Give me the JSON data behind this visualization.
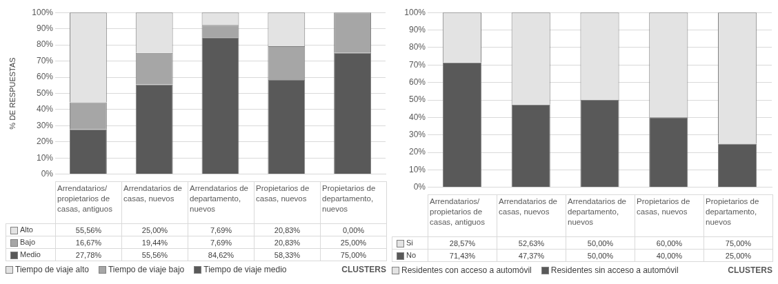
{
  "chart_data": [
    {
      "type": "bar",
      "stacked": true,
      "ylabel": "% DE RESPUESTAS",
      "xlabel": "CLUSTERS",
      "categories": [
        "Arrendatarios/ propietarios de casas, antiguos",
        "Arrendatarios de casas, nuevos",
        "Arrendatarios de departamento, nuevos",
        "Propietarios de casas, nuevos",
        "Propietarios de departamento, nuevos"
      ],
      "series": [
        {
          "name": "Tiempo de viaje medio",
          "color": "#595959",
          "values": [
            27.78,
            55.56,
            84.62,
            58.33,
            75.0
          ],
          "value_labels": [
            "27,78%",
            "55,56%",
            "84,62%",
            "58,33%",
            "75,00%"
          ]
        },
        {
          "name": "Tiempo de viaje bajo",
          "color": "#a6a6a6",
          "values": [
            16.67,
            19.44,
            7.69,
            20.83,
            25.0
          ],
          "value_labels": [
            "16,67%",
            "19,44%",
            "7,69%",
            "20,83%",
            "25,00%"
          ]
        },
        {
          "name": "Tiempo de viaje alto",
          "color": "#e3e3e3",
          "values": [
            55.56,
            25.0,
            7.69,
            20.83,
            0.0
          ],
          "value_labels": [
            "55,56%",
            "25,00%",
            "7,69%",
            "20,83%",
            "0,00%"
          ]
        }
      ],
      "annotations": [
        "Medio",
        "Bajo",
        "Alto"
      ],
      "ylim": [
        0,
        100
      ],
      "yticks": [
        {
          "value": 0,
          "label": "0%"
        },
        {
          "value": 10,
          "label": "10%"
        },
        {
          "value": 20,
          "label": "20%"
        },
        {
          "value": 30,
          "label": "30%"
        },
        {
          "value": 40,
          "label": "40%"
        },
        {
          "value": 50,
          "label": "50%"
        },
        {
          "value": 60,
          "label": "60%"
        },
        {
          "value": 70,
          "label": "70%"
        },
        {
          "value": 80,
          "label": "80%"
        },
        {
          "value": 90,
          "label": "90%"
        },
        {
          "value": 100,
          "label": "100%"
        }
      ],
      "grid": "y",
      "legend": "bottom"
    },
    {
      "type": "bar",
      "stacked": true,
      "xlabel": "CLUSTERS",
      "categories": [
        "Arrendatarios/ propietarios de casas, antiguos",
        "Arrendatarios de casas, nuevos",
        "Arrendatarios de departamento, nuevos",
        "Propietarios de casas, nuevos",
        "Propietarios de departamento, nuevos"
      ],
      "series": [
        {
          "name": "Residentes sin acceso a automóvil",
          "color": "#595959",
          "values": [
            71.43,
            47.37,
            50.0,
            40.0,
            25.0
          ],
          "value_labels": [
            "71,43%",
            "47,37%",
            "50,00%",
            "40,00%",
            "25,00%"
          ]
        },
        {
          "name": "Residentes con acceso a automóvil",
          "color": "#e3e3e3",
          "values": [
            28.57,
            52.63,
            50.0,
            60.0,
            75.0
          ],
          "value_labels": [
            "28,57%",
            "52,63%",
            "50,00%",
            "60,00%",
            "75,00%"
          ]
        }
      ],
      "annotations": [
        "No",
        "Si"
      ],
      "ylim": [
        0,
        100
      ],
      "yticks": [
        {
          "value": 0,
          "label": "0%"
        },
        {
          "value": 10,
          "label": "10%"
        },
        {
          "value": 20,
          "label": "20%"
        },
        {
          "value": 30,
          "label": "30%"
        },
        {
          "value": 40,
          "label": "40%"
        },
        {
          "value": 50,
          "label": "50%"
        },
        {
          "value": 60,
          "label": "60%"
        },
        {
          "value": 70,
          "label": "70%"
        },
        {
          "value": 80,
          "label": "80%"
        },
        {
          "value": 90,
          "label": "90%"
        },
        {
          "value": 100,
          "label": "100%"
        }
      ],
      "grid": "y",
      "legend": "bottom"
    }
  ]
}
